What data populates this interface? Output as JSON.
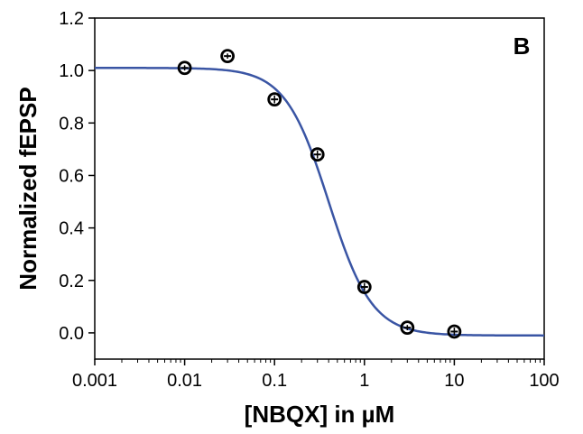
{
  "chart_data": {
    "type": "scatter",
    "title": "",
    "panel_label": "B",
    "xlabel": "[NBQX] in µM",
    "ylabel": "Normalized fEPSP",
    "x_scale": "log",
    "xlim": [
      0.001,
      100
    ],
    "ylim": [
      -0.1,
      1.2
    ],
    "x_ticks": [
      0.001,
      0.01,
      0.1,
      1,
      10,
      100
    ],
    "x_tick_labels": [
      "0.001",
      "0.01",
      "0.1",
      "1",
      "10",
      "100"
    ],
    "y_ticks": [
      0.0,
      0.2,
      0.4,
      0.6,
      0.8,
      1.0,
      1.2
    ],
    "y_tick_labels": [
      "0.0",
      "0.2",
      "0.4",
      "0.6",
      "0.8",
      "1.0",
      "1.2"
    ],
    "grid": false,
    "legend": "none",
    "points": [
      {
        "x": 0.01,
        "y": 1.01,
        "err": 0.01
      },
      {
        "x": 0.03,
        "y": 1.055,
        "err": 0.01
      },
      {
        "x": 0.1,
        "y": 0.89,
        "err": 0.015
      },
      {
        "x": 0.3,
        "y": 0.68,
        "err": 0.015
      },
      {
        "x": 1,
        "y": 0.175,
        "err": 0.015
      },
      {
        "x": 3,
        "y": 0.02,
        "err": 0.01
      },
      {
        "x": 10,
        "y": 0.005,
        "err": 0.015
      }
    ],
    "fit_curve": {
      "model": "sigmoid",
      "top": 1.01,
      "bottom": -0.01,
      "ic50": 0.4,
      "hill": 1.8,
      "color": "#3a55a4"
    },
    "marker_color": "#000000"
  }
}
